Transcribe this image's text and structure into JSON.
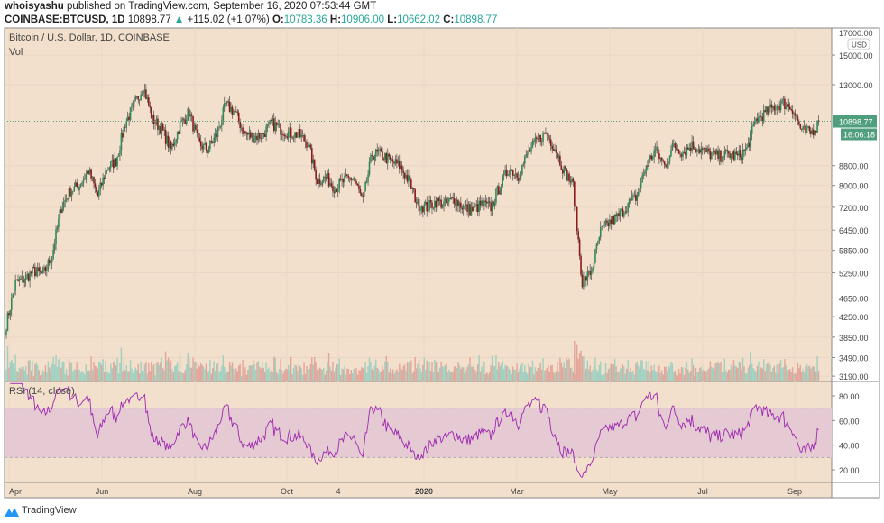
{
  "header": {
    "author": "whoisyashu",
    "published": "published on TradingView.com, September 16, 2020 07:53:44 GMT",
    "symbol": "COINBASE:BTCUSD, 1D",
    "last": "10898.77",
    "change": "+115.02 (+1.07%)",
    "o_label": "O:",
    "o": "10783.36",
    "h_label": "H:",
    "h": "10906.00",
    "l_label": "L:",
    "l": "10662.02",
    "c_label": "C:",
    "c": "10898.77"
  },
  "legend": {
    "title": "Bitcoin / U.S. Dollar, 1D, COINBASE",
    "vol": "Vol",
    "rsi": "RSI (14, close)"
  },
  "footer": {
    "brand": "TradingView"
  },
  "colors": {
    "bg": "#f2dfcc",
    "up": "#26a69a",
    "down": "#8b1a1a",
    "rsi": "#9c27b0",
    "band": "#e6cad3",
    "badge": "#4f9e7e"
  },
  "chart_data": {
    "type": "candlestick",
    "title": "Bitcoin / U.S. Dollar, 1D, COINBASE",
    "price_axis": {
      "unit": "USD",
      "ticks": [
        17000,
        15000,
        13000,
        8800,
        8000,
        7200,
        6450,
        5850,
        5250,
        4650,
        4250,
        3850,
        3490,
        3190
      ],
      "scale": "log"
    },
    "last_price": "10898.77",
    "countdown": "16:06:18",
    "time_axis": [
      "Apr",
      "Jun",
      "Aug",
      "Oct",
      "4",
      "2020",
      "Mar",
      "May",
      "Jul",
      "Sep"
    ],
    "weekly_closes": [
      4100,
      5000,
      5100,
      5300,
      5200,
      5700,
      7200,
      7800,
      8000,
      8600,
      7600,
      8700,
      9000,
      10800,
      11800,
      12900,
      11000,
      10500,
      9500,
      10700,
      11400,
      9800,
      9500,
      10200,
      11800,
      11400,
      10300,
      10100,
      10200,
      10800,
      10500,
      10300,
      10200,
      9800,
      8200,
      8300,
      7900,
      8200,
      8300,
      7400,
      9300,
      9300,
      9000,
      8800,
      8200,
      7300,
      7200,
      7400,
      7300,
      7500,
      7200,
      7100,
      7300,
      7200,
      8000,
      8700,
      8400,
      9300,
      9900,
      10300,
      9600,
      8600,
      8000,
      5000,
      5300,
      6400,
      6700,
      6900,
      7300,
      7600,
      8800,
      9500,
      8800,
      9700,
      9400,
      9700,
      9500,
      9300,
      9200,
      9300,
      9200,
      9500,
      11000,
      11300,
      11700,
      11900,
      11600,
      10400,
      10300,
      10898.77
    ],
    "rsi": {
      "period": 14,
      "upper": 70,
      "lower": 30,
      "ticks": [
        80,
        60,
        40,
        20
      ]
    }
  }
}
